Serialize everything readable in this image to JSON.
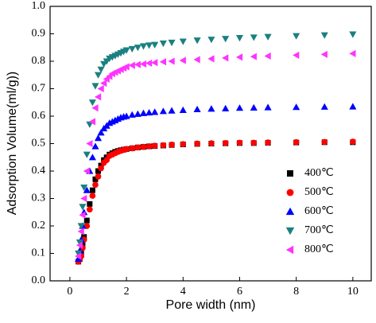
{
  "chart_data": {
    "type": "scatter",
    "x_label": "Pore width (nm)",
    "y_label": "Adsorption Volume(ml/g))",
    "xlim": [
      -0.7,
      10.65
    ],
    "ylim": [
      0,
      1
    ],
    "xticks": [
      0,
      2,
      4,
      6,
      8,
      10
    ],
    "yticks": [
      {
        "value": 0,
        "label": "0.0"
      },
      {
        "value": 0.1,
        "label": "0.1"
      },
      {
        "value": 0.2,
        "label": "0.2"
      },
      {
        "value": 0.3,
        "label": "0.3"
      },
      {
        "value": 0.4,
        "label": "0.4"
      },
      {
        "value": 0.5,
        "label": "0.5"
      },
      {
        "value": 0.6,
        "label": "0.6"
      },
      {
        "value": 0.7,
        "label": "0.7"
      },
      {
        "value": 0.8,
        "label": "0.8"
      },
      {
        "value": 0.9,
        "label": "0.9"
      },
      {
        "value": 1,
        "label": "1.0"
      }
    ],
    "legend": "lower right",
    "x": [
      0.3,
      0.35,
      0.4,
      0.45,
      0.5,
      0.6,
      0.7,
      0.8,
      0.9,
      1.0,
      1.1,
      1.2,
      1.3,
      1.4,
      1.5,
      1.6,
      1.7,
      1.8,
      1.9,
      2.0,
      2.2,
      2.4,
      2.6,
      2.8,
      3.0,
      3.3,
      3.6,
      4.0,
      4.5,
      5.0,
      5.5,
      6.0,
      6.5,
      7.0,
      8.0,
      9.0,
      10.0
    ],
    "series": [
      {
        "name": "400℃",
        "color": "#000000",
        "marker": "square",
        "values": [
          0.07,
          0.08,
          0.1,
          0.13,
          0.16,
          0.22,
          0.28,
          0.33,
          0.37,
          0.4,
          0.42,
          0.44,
          0.45,
          0.46,
          0.465,
          0.47,
          0.473,
          0.476,
          0.478,
          0.48,
          0.483,
          0.486,
          0.488,
          0.49,
          0.491,
          0.493,
          0.495,
          0.497,
          0.499,
          0.5,
          0.501,
          0.502,
          0.502,
          0.503,
          0.504,
          0.505,
          0.505
        ]
      },
      {
        "name": "500℃",
        "color": "#ff0000",
        "marker": "circle",
        "values": [
          0.07,
          0.08,
          0.09,
          0.12,
          0.15,
          0.2,
          0.26,
          0.31,
          0.35,
          0.38,
          0.41,
          0.43,
          0.44,
          0.455,
          0.46,
          0.465,
          0.47,
          0.474,
          0.477,
          0.48,
          0.483,
          0.486,
          0.488,
          0.49,
          0.492,
          0.494,
          0.496,
          0.498,
          0.5,
          0.501,
          0.502,
          0.503,
          0.503,
          0.504,
          0.505,
          0.506,
          0.507
        ]
      },
      {
        "name": "600℃",
        "color": "#0000ff",
        "marker": "triangle-up",
        "values": [
          0.08,
          0.11,
          0.15,
          0.2,
          0.25,
          0.33,
          0.4,
          0.45,
          0.49,
          0.52,
          0.54,
          0.555,
          0.565,
          0.575,
          0.58,
          0.585,
          0.59,
          0.595,
          0.598,
          0.6,
          0.605,
          0.608,
          0.611,
          0.613,
          0.615,
          0.618,
          0.62,
          0.622,
          0.625,
          0.627,
          0.628,
          0.63,
          0.631,
          0.632,
          0.633,
          0.634,
          0.635
        ]
      },
      {
        "name": "700℃",
        "color": "#1a8080",
        "marker": "triangle-down",
        "values": [
          0.1,
          0.14,
          0.2,
          0.27,
          0.34,
          0.46,
          0.57,
          0.65,
          0.71,
          0.75,
          0.77,
          0.79,
          0.8,
          0.81,
          0.815,
          0.82,
          0.825,
          0.83,
          0.835,
          0.84,
          0.845,
          0.85,
          0.855,
          0.858,
          0.86,
          0.865,
          0.868,
          0.872,
          0.876,
          0.879,
          0.882,
          0.885,
          0.887,
          0.889,
          0.892,
          0.895,
          0.898
        ]
      },
      {
        "name": "800℃",
        "color": "#ff33ff",
        "marker": "triangle-left",
        "values": [
          0.09,
          0.13,
          0.18,
          0.24,
          0.3,
          0.4,
          0.5,
          0.58,
          0.63,
          0.67,
          0.7,
          0.72,
          0.735,
          0.745,
          0.755,
          0.76,
          0.765,
          0.77,
          0.775,
          0.78,
          0.785,
          0.788,
          0.79,
          0.793,
          0.795,
          0.798,
          0.8,
          0.803,
          0.806,
          0.809,
          0.812,
          0.815,
          0.817,
          0.819,
          0.822,
          0.825,
          0.828
        ]
      }
    ]
  }
}
